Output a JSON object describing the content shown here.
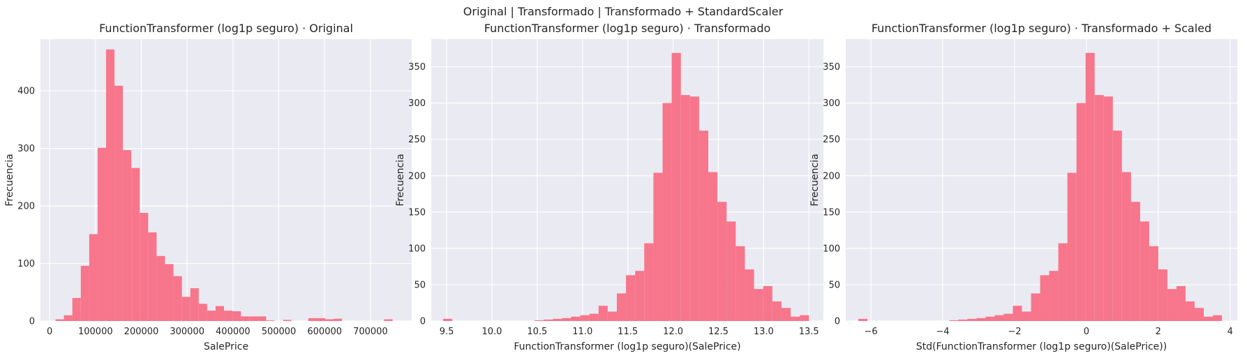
{
  "figure": {
    "suptitle": "Original | Transformado | Transformado + StandardScaler"
  },
  "colors": {
    "plot_background": "#eaeaf2",
    "grid": "#ffffff",
    "bar": "#f7768b"
  },
  "chart_data": [
    {
      "type": "bar",
      "title": "FunctionTransformer (log1p seguro) · Original",
      "xlabel": "SalePrice",
      "ylabel": "Frecuencia",
      "xlim": [
        -20000,
        790000
      ],
      "ylim": [
        0,
        490
      ],
      "xticks": [
        0,
        100000,
        200000,
        300000,
        400000,
        500000,
        600000,
        700000
      ],
      "xtick_labels": [
        "0",
        "100000",
        "200000",
        "300000",
        "400000",
        "500000",
        "600000",
        "700000"
      ],
      "yticks": [
        0,
        100,
        200,
        300,
        400
      ],
      "ytick_labels": [
        "0",
        "100",
        "200",
        "300",
        "400"
      ],
      "bins": {
        "start": 12789,
        "width": 18385,
        "count": 40
      },
      "values": [
        3,
        10,
        40,
        96,
        151,
        301,
        472,
        409,
        297,
        266,
        188,
        154,
        113,
        99,
        78,
        42,
        57,
        30,
        18,
        26,
        18,
        17,
        8,
        8,
        8,
        1,
        0,
        2,
        0,
        0,
        5,
        5,
        3,
        4,
        0,
        0,
        0,
        0,
        0,
        3
      ],
      "grid": true,
      "legend": "none"
    },
    {
      "type": "bar",
      "title": "FunctionTransformer (log1p seguro) · Transformado",
      "xlabel": "FunctionTransformer (log1p seguro)(SalePrice)",
      "ylabel": "Frecuencia",
      "xlim": [
        9.33,
        13.66
      ],
      "ylim": [
        0,
        388
      ],
      "xticks": [
        9.5,
        10.0,
        10.5,
        11.0,
        11.5,
        12.0,
        12.5,
        13.0,
        13.5
      ],
      "xtick_labels": [
        "9.5",
        "10.0",
        "10.5",
        "11.0",
        "11.5",
        "12.0",
        "12.5",
        "13.0",
        "13.5"
      ],
      "yticks": [
        0,
        50,
        100,
        150,
        200,
        250,
        300,
        350
      ],
      "ytick_labels": [
        "0",
        "50",
        "100",
        "150",
        "200",
        "250",
        "300",
        "350"
      ],
      "bins": {
        "start": 9.46,
        "width": 0.101,
        "count": 40
      },
      "values": [
        3,
        0,
        0,
        0,
        0,
        0,
        0,
        0,
        0,
        0,
        1,
        2,
        3,
        4,
        6,
        8,
        10,
        21,
        13,
        38,
        63,
        69,
        107,
        204,
        300,
        369,
        311,
        309,
        262,
        205,
        164,
        137,
        103,
        71,
        44,
        48,
        27,
        18,
        6,
        8
      ],
      "grid": true,
      "legend": "none"
    },
    {
      "type": "bar",
      "title": "FunctionTransformer (log1p seguro) · Transformado + Scaled",
      "xlabel": "Std(FunctionTransformer (log1p seguro)(SalePrice))",
      "ylabel": "Frecuencia",
      "xlim": [
        -6.7,
        4.2
      ],
      "ylim": [
        0,
        388
      ],
      "xticks": [
        -6,
        -4,
        -2,
        0,
        2,
        4
      ],
      "xtick_labels": [
        "−6",
        "−4",
        "−2",
        "0",
        "2",
        "4"
      ],
      "yticks": [
        0,
        50,
        100,
        150,
        200,
        250,
        300,
        350
      ],
      "ytick_labels": [
        "0",
        "50",
        "100",
        "150",
        "200",
        "250",
        "300",
        "350"
      ],
      "bins": {
        "start": -6.35,
        "width": 0.2531,
        "count": 40
      },
      "values": [
        3,
        0,
        0,
        0,
        0,
        0,
        0,
        0,
        0,
        0,
        1,
        2,
        3,
        4,
        6,
        8,
        10,
        21,
        13,
        38,
        63,
        69,
        107,
        204,
        300,
        369,
        311,
        309,
        262,
        205,
        164,
        137,
        103,
        71,
        44,
        48,
        27,
        18,
        6,
        8
      ],
      "grid": true,
      "legend": "none"
    }
  ]
}
